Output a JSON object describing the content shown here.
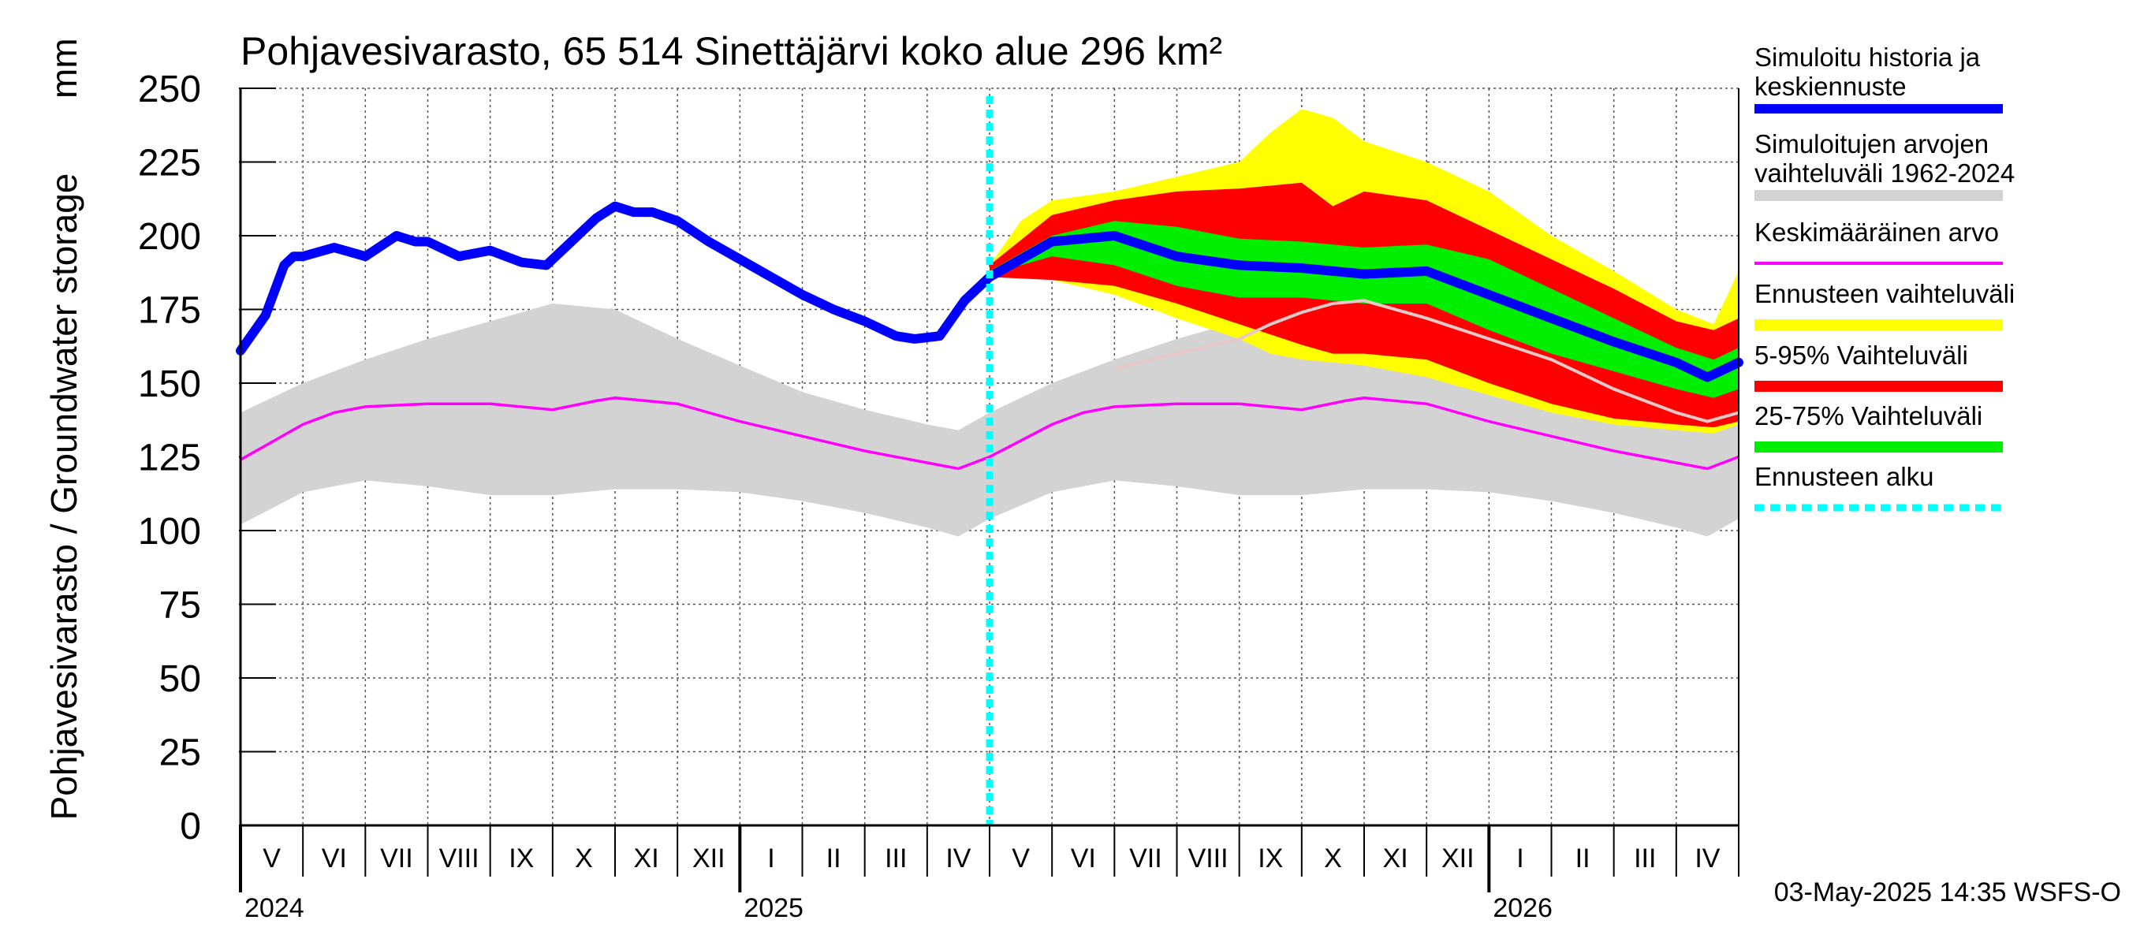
{
  "chart_data": {
    "type": "area",
    "title": "Pohjavesivarasto, 65 514 Sinettäjärvi koko alue 296 km²",
    "ylabel": "Pohjavesivarasto / Groundwater storage",
    "yunit": "mm",
    "ylim": [
      0,
      250
    ],
    "yticks": [
      0,
      25,
      50,
      75,
      100,
      125,
      150,
      175,
      200,
      225,
      250
    ],
    "xlim": [
      0,
      24
    ],
    "month_labels": [
      "V",
      "VI",
      "VII",
      "VIII",
      "IX",
      "X",
      "XI",
      "XII",
      "I",
      "II",
      "III",
      "IV",
      "V",
      "VI",
      "VII",
      "VIII",
      "IX",
      "X",
      "XI",
      "XII",
      "I",
      "II",
      "III",
      "IV"
    ],
    "year_labels": [
      {
        "label": "2024",
        "at": 0
      },
      {
        "label": "2025",
        "at": 8
      },
      {
        "label": "2026",
        "at": 20
      }
    ],
    "forecast_start": 12,
    "timestamp": "03-May-2025 14:35 WSFS-O",
    "colors": {
      "history": "#0000ff",
      "range_hist": "#d3d3d3",
      "mean": "#ff00ff",
      "forecast_range": "#ffff00",
      "p5_95": "#ff0000",
      "p25_75": "#00ee00",
      "forecast_start": "#00ffff",
      "median_line": "#e6c8c8"
    },
    "legend": [
      {
        "label": "Simuloitu historia ja",
        "label2": "keskiennuste",
        "color": "#0000ff",
        "style": "thick"
      },
      {
        "label": "Simuloitujen arvojen",
        "label2": "vaihteluväli 1962-2024",
        "color": "#d3d3d3",
        "style": "band"
      },
      {
        "label": "Keskimääräinen arvo",
        "label2": "",
        "color": "#ff00ff",
        "style": "thin"
      },
      {
        "label": "Ennusteen vaihteluväli",
        "label2": "",
        "color": "#ffff00",
        "style": "band"
      },
      {
        "label": "5-95% Vaihteluväli",
        "label2": "",
        "color": "#ff0000",
        "style": "band"
      },
      {
        "label": "25-75% Vaihteluväli",
        "label2": "",
        "color": "#00ee00",
        "style": "band"
      },
      {
        "label": "Ennusteen alku",
        "label2": "",
        "color": "#00ffff",
        "style": "dotted"
      }
    ],
    "history_range": {
      "x": [
        0,
        1,
        2,
        3,
        4,
        5,
        6,
        7,
        8,
        9,
        10,
        11,
        11.5,
        12,
        13,
        14,
        15,
        16,
        17,
        18,
        19,
        20,
        21,
        22,
        23,
        23.5,
        24
      ],
      "upper": [
        140,
        150,
        158,
        165,
        171,
        177,
        175,
        165,
        156,
        147,
        141,
        136,
        134,
        140,
        150,
        158,
        165,
        171,
        177,
        175,
        165,
        156,
        147,
        141,
        136,
        134,
        140
      ],
      "lower": [
        102,
        113,
        117,
        115,
        112,
        112,
        114,
        114,
        113,
        110,
        106,
        101,
        98,
        104,
        113,
        117,
        115,
        112,
        112,
        114,
        114,
        113,
        110,
        106,
        101,
        98,
        104
      ]
    },
    "mean": {
      "x": [
        0,
        1,
        1.5,
        2,
        3,
        4,
        5,
        5.7,
        6,
        7,
        8,
        9,
        10,
        11,
        11.5,
        12,
        13,
        13.5,
        14,
        15,
        16,
        17,
        17.7,
        18,
        19,
        20,
        21,
        22,
        23,
        23.5,
        24
      ],
      "y": [
        124,
        136,
        140,
        142,
        143,
        143,
        141,
        144,
        145,
        143,
        137,
        132,
        127,
        123,
        121,
        125,
        136,
        140,
        142,
        143,
        143,
        141,
        144,
        145,
        143,
        137,
        132,
        127,
        123,
        121,
        125
      ]
    },
    "history": {
      "x": [
        0,
        0.4,
        0.7,
        0.85,
        1,
        1.5,
        2,
        2.5,
        2.8,
        3,
        3.5,
        4,
        4.5,
        4.9,
        5.2,
        5.5,
        5.7,
        6,
        6.3,
        6.6,
        7,
        7.5,
        8,
        8.5,
        9,
        9.5,
        10,
        10.5,
        10.8,
        11.2,
        11.6,
        12
      ],
      "y": [
        161,
        173,
        190,
        193,
        193,
        196,
        193,
        200,
        198,
        198,
        193,
        195,
        191,
        190,
        196,
        202,
        206,
        210,
        208,
        208,
        205,
        198,
        192,
        186,
        180,
        175,
        171,
        166,
        165,
        166,
        178,
        186
      ]
    },
    "forecast_median": {
      "x": [
        12,
        13,
        14,
        15,
        16,
        17,
        18,
        19,
        20,
        21,
        22,
        23,
        23.5,
        24
      ],
      "y": [
        186,
        198,
        200,
        193,
        190,
        189,
        187,
        188,
        180,
        172,
        164,
        157,
        152,
        157
      ]
    },
    "forecast_white": {
      "x": [
        14,
        15,
        16,
        16.5,
        17,
        17.5,
        18,
        19,
        20,
        21,
        22,
        23,
        23.5,
        24
      ],
      "y": [
        155,
        160,
        165,
        170,
        174,
        177,
        178,
        172,
        165,
        158,
        148,
        140,
        137,
        140
      ]
    },
    "forecast_full": {
      "x": [
        12,
        12.5,
        13,
        14,
        15,
        16,
        16.5,
        17,
        17.5,
        18,
        19,
        20,
        21,
        22,
        23,
        23.6,
        24
      ],
      "upper": [
        190,
        205,
        212,
        215,
        220,
        225,
        235,
        243,
        240,
        232,
        225,
        215,
        200,
        188,
        175,
        170,
        188
      ],
      "lower": [
        186,
        188,
        185,
        180,
        172,
        165,
        160,
        158,
        157,
        156,
        152,
        146,
        140,
        136,
        134,
        133,
        136
      ]
    },
    "forecast_p5_95": {
      "x": [
        12,
        13,
        14,
        15,
        16,
        17,
        17.5,
        18,
        19,
        20,
        21,
        22,
        23,
        23.6,
        24
      ],
      "upper": [
        190,
        207,
        212,
        215,
        216,
        218,
        210,
        215,
        212,
        202,
        192,
        182,
        171,
        168,
        172
      ],
      "lower": [
        186,
        185,
        183,
        177,
        170,
        163,
        160,
        160,
        158,
        150,
        143,
        138,
        136,
        135,
        137
      ]
    },
    "forecast_p25_75": {
      "x": [
        12,
        13,
        14,
        15,
        16,
        17,
        18,
        19,
        20,
        21,
        22,
        23,
        23.6,
        24
      ],
      "upper": [
        188,
        200,
        205,
        203,
        199,
        198,
        196,
        197,
        192,
        182,
        172,
        162,
        158,
        162
      ],
      "lower": [
        187,
        193,
        190,
        183,
        179,
        179,
        177,
        177,
        168,
        160,
        154,
        148,
        145,
        148
      ]
    }
  }
}
